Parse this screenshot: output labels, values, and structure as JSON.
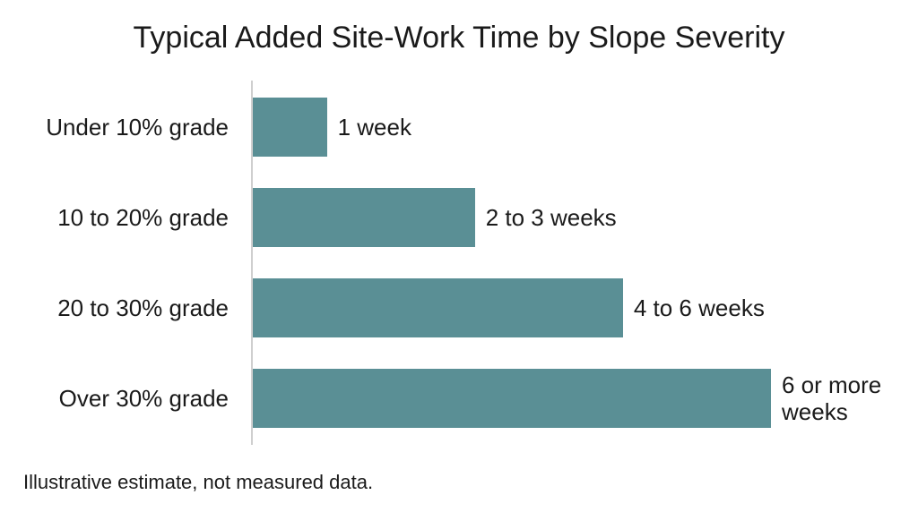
{
  "chart_data": {
    "type": "bar",
    "orientation": "horizontal",
    "title": "Typical Added Site-Work Time by Slope Severity",
    "categories": [
      "Under 10% grade",
      "10 to 20% grade",
      "20 to 30% grade",
      "Over 30% grade"
    ],
    "values": [
      1,
      3,
      5,
      7
    ],
    "value_labels": [
      "1 week",
      "2 to 3 weeks",
      "4 to 6 weeks",
      "6 or more weeks"
    ],
    "color": "#5a8f95",
    "note": "Illustrative estimate, not measured data."
  }
}
